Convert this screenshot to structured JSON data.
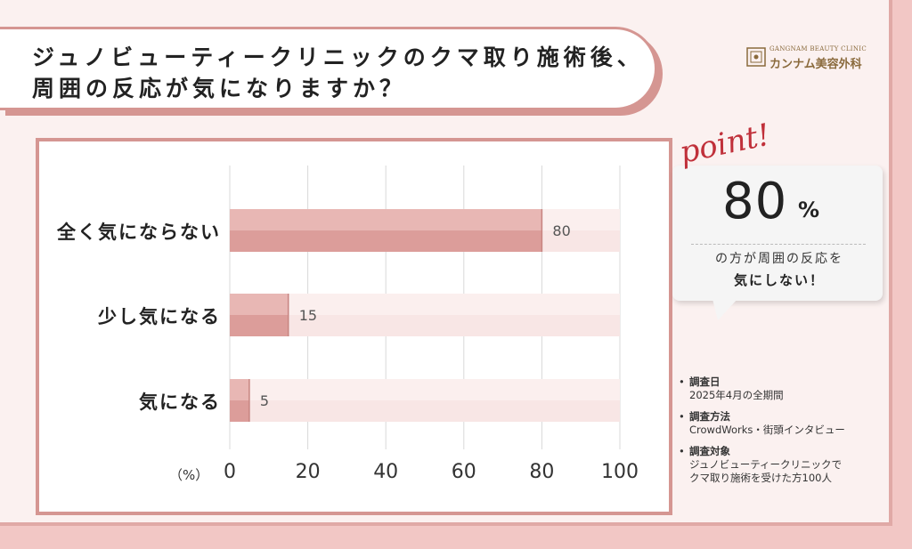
{
  "title": {
    "line1": "ジュノビューティークリニックのクマ取り施術後、",
    "line2": "周囲の反応が気になりますか？"
  },
  "brand": {
    "en": "GANGNAM BEAUTY CLINIC",
    "jp": "カンナム美容外科"
  },
  "colors": {
    "bar": "#dc9d9a",
    "bar_light": "#e8b7b4",
    "track": "#f8e6e5",
    "accent": "#c0303a",
    "border": "#d59692"
  },
  "chart_data": {
    "type": "bar",
    "orientation": "horizontal",
    "categories": [
      "全く気にならない",
      "少し気になる",
      "気になる"
    ],
    "values": [
      80,
      15,
      5
    ],
    "xlim": [
      0,
      100
    ],
    "xticks": [
      "0",
      "20",
      "40",
      "60",
      "80",
      "100"
    ],
    "unit_label": "（%）",
    "grid": true
  },
  "callout": {
    "point_label": "point!",
    "big_number": "80",
    "big_unit": "%",
    "line1": "の方が周囲の反応を",
    "line2": "気にしない！"
  },
  "notes": [
    {
      "head": "調査日",
      "lines": [
        "2025年4月の全期間"
      ]
    },
    {
      "head": "調査方法",
      "lines": [
        "CrowdWorks・街頭インタビュー"
      ]
    },
    {
      "head": "調査対象",
      "lines": [
        "ジュノビューティークリニックで",
        "クマ取り施術を受けた方100人"
      ]
    }
  ]
}
